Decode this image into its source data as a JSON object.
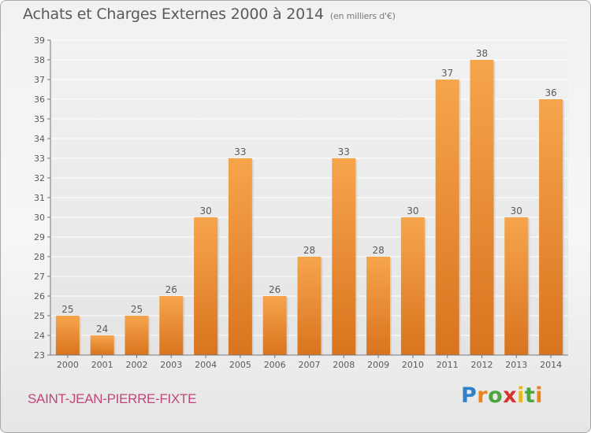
{
  "title": "Achats et Charges Externes 2000 à 2014",
  "subtitle": "(en milliers d'€)",
  "town": "SAINT-JEAN-PIERRE-FIXTE",
  "logo": {
    "text": "Proxiti",
    "colors": [
      "#2f82c8",
      "#e8831e",
      "#4aa63d",
      "#d8332c",
      "#e8b71e"
    ]
  },
  "colors": {
    "bar_top": "#f6a54c",
    "bar_bottom": "#d9741e",
    "grid": "#ffffff",
    "text": "#5a5a5a",
    "town": "#c0467a"
  },
  "chart_data": {
    "type": "bar",
    "title": "Achats et Charges Externes 2000 à 2014",
    "subtitle": "(en milliers d'€)",
    "categories": [
      "2000",
      "2001",
      "2002",
      "2003",
      "2004",
      "2005",
      "2006",
      "2007",
      "2008",
      "2009",
      "2010",
      "2011",
      "2012",
      "2013",
      "2014"
    ],
    "values": [
      25,
      24,
      25,
      26,
      30,
      33,
      26,
      28,
      33,
      28,
      30,
      37,
      38,
      30,
      36
    ],
    "ylim": [
      23,
      39
    ],
    "yticks": [
      23,
      24,
      25,
      26,
      27,
      28,
      29,
      30,
      31,
      32,
      33,
      34,
      35,
      36,
      37,
      38,
      39
    ],
    "grid": true,
    "data_labels": true
  }
}
